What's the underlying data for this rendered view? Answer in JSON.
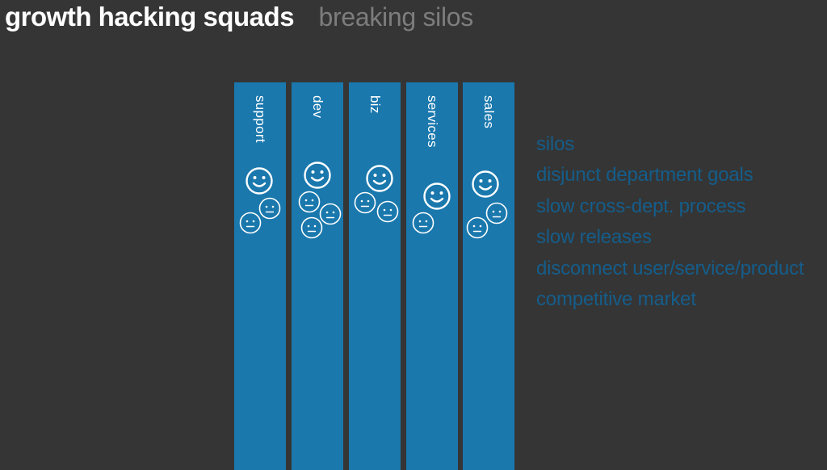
{
  "header": {
    "title": "growth hacking squads",
    "subtitle": "breaking silos"
  },
  "departments": [
    {
      "label": "support",
      "faces": [
        "smiley-icon",
        "neutral-face-icon",
        "neutral-face-icon"
      ]
    },
    {
      "label": "dev",
      "faces": [
        "smiley-icon",
        "neutral-face-icon",
        "neutral-face-icon",
        "neutral-face-icon"
      ]
    },
    {
      "label": "biz",
      "faces": [
        "smiley-icon",
        "neutral-face-icon",
        "neutral-face-icon"
      ]
    },
    {
      "label": "services",
      "faces": [
        "smiley-icon",
        "neutral-face-icon"
      ]
    },
    {
      "label": "sales",
      "faces": [
        "smiley-icon",
        "neutral-face-icon",
        "neutral-face-icon"
      ]
    }
  ],
  "issues": [
    "silos",
    "disjunct department goals",
    "slow cross-dept. process",
    "slow releases",
    "disconnect user/service/product",
    "competitive market"
  ],
  "colors": {
    "background": "#353535",
    "column": "#1a78ad",
    "issue_text": "#155d8a",
    "subtitle": "#7d7d7d"
  }
}
